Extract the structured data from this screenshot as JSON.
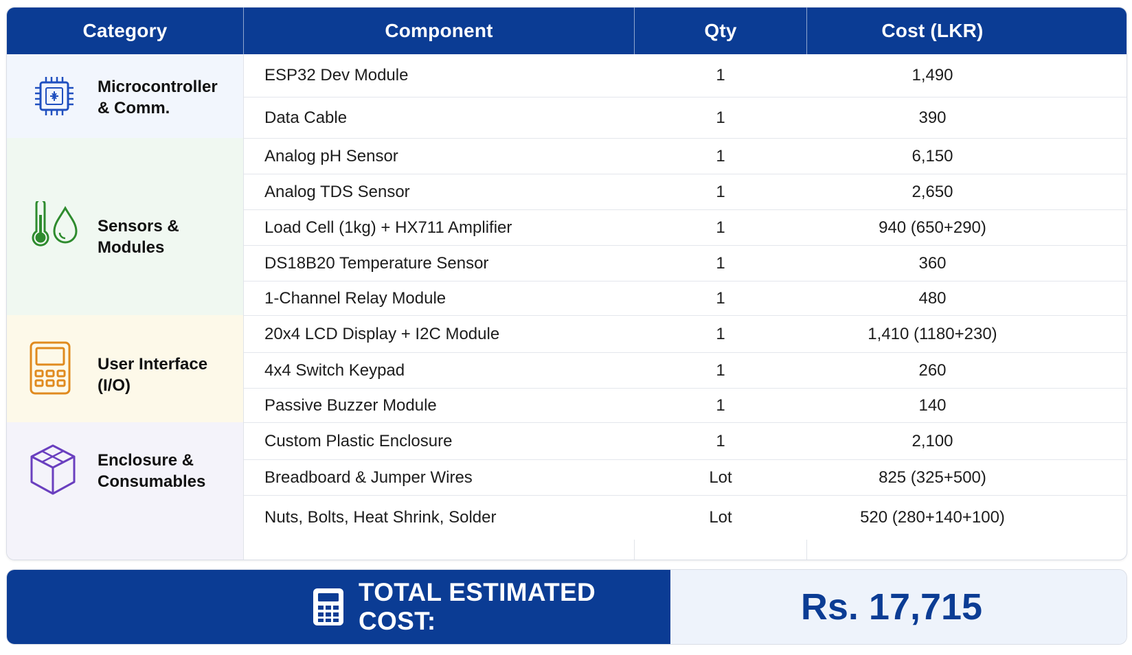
{
  "headers": {
    "category": "Category",
    "component": "Component",
    "qty": "Qty",
    "cost": "Cost (LKR)"
  },
  "categories": [
    {
      "label": "Microcontroller\n& Comm.",
      "icon": "microchip-icon",
      "color": "#1f4fbf",
      "bg": "#f2f6fd"
    },
    {
      "label": "Sensors & Modules",
      "icon": "thermometer-droplet-icon",
      "color": "#2e8b2e",
      "bg": "#f0f8f1"
    },
    {
      "label": "User Interface (I/O)",
      "icon": "keypad-icon",
      "color": "#e08a1e",
      "bg": "#fdf9e9"
    },
    {
      "label": "Enclosure &\nConsumables",
      "icon": "box-icon",
      "color": "#6a3fbf",
      "bg": "#f4f3fa"
    }
  ],
  "rows": [
    {
      "component": "ESP32 Dev Module",
      "qty": "1",
      "cost": "1,490"
    },
    {
      "component": "Data Cable",
      "qty": "1",
      "cost": "390"
    },
    {
      "component": "Analog pH Sensor",
      "qty": "1",
      "cost": "6,150"
    },
    {
      "component": "Analog TDS Sensor",
      "qty": "1",
      "cost": "2,650"
    },
    {
      "component": "Load Cell (1kg) + HX711 Amplifier",
      "qty": "1",
      "cost": "940 (650+290)"
    },
    {
      "component": "DS18B20 Temperature Sensor",
      "qty": "1",
      "cost": "360"
    },
    {
      "component": "1-Channel Relay Module",
      "qty": "1",
      "cost": "480"
    },
    {
      "component": "20x4 LCD Display + I2C Module",
      "qty": "1",
      "cost": "1,410 (1180+230)"
    },
    {
      "component": "4x4 Switch Keypad",
      "qty": "1",
      "cost": "260"
    },
    {
      "component": "Passive Buzzer Module",
      "qty": "1",
      "cost": "140"
    },
    {
      "component": "Custom Plastic Enclosure",
      "qty": "1",
      "cost": "2,100"
    },
    {
      "component": "Breadboard & Jumper Wires",
      "qty": "Lot",
      "cost": "825 (325+500)"
    },
    {
      "component": "Nuts, Bolts, Heat Shrink, Solder",
      "qty": "Lot",
      "cost": "520 (280+140+100)"
    }
  ],
  "total": {
    "label": "TOTAL ESTIMATED COST:",
    "value": "Rs. 17,715",
    "icon": "calculator-icon"
  },
  "colors": {
    "header_bg": "#0b3c94",
    "total_value": "#0b3c94",
    "total_right_bg": "#eef3fb"
  }
}
